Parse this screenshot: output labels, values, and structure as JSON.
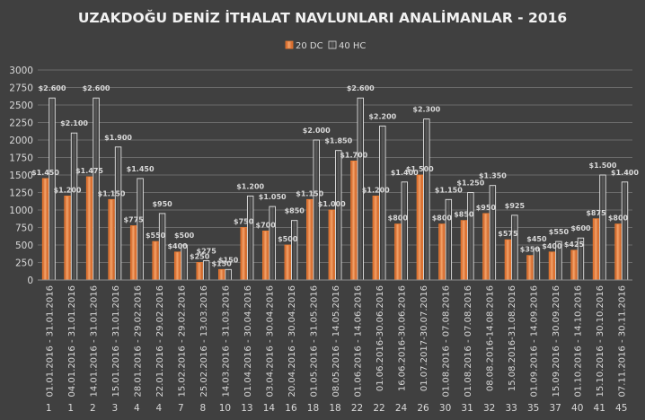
{
  "chart_data": {
    "type": "bar",
    "title": "UZAKDOĞU DENİZ İTHALAT NAVLUNLARI ANALİMANLAR - 2016",
    "legend": {
      "placement": "top-center",
      "entries": [
        "20 DC",
        "40 HC"
      ]
    },
    "ylim": [
      0,
      3000
    ],
    "yticks": [
      0,
      250,
      500,
      750,
      1000,
      1250,
      1500,
      1750,
      2000,
      2250,
      2500,
      2750,
      3000
    ],
    "grid": true,
    "categories": [
      "01.01.2016 - 31.01.2016",
      "04.01.2016 - 31.01.2016",
      "14.01.2016 - 31.01.2016",
      "15.01.2016 - 31.01.2016",
      "28.01.2016 - 29.02.2016",
      "22.01.2016 - 29.02.2016",
      "15.02.2016 - 29.02.2016",
      "25.02.2016 - 13.03.2016",
      "14.03.2016 - 31.03.2016",
      "01.04.2016 - 30.04.2016",
      "03.04.2016 - 30.04.2016",
      "20.04.2016 - 30.04.2016",
      "01.05.2016 - 31.05.2016",
      "08.05.2016 - 14.05.2016",
      "01.06.2016 - 14.06.2016",
      "01.06.2016-30.06.2016",
      "16.06.2016-30.06.2016",
      "01.07.2017-30.07.2016",
      "01.08.2016 - 07.08.2016",
      "01.08.2016 - 07.08.2016",
      "08.08.2016-14.08.2016",
      "15.08.2016-31.08.2016",
      "01.09.2016 - 14.09.2016",
      "15.09.2016 - 30.09.2016",
      "01.10.2016 - 14.10.2016",
      "15.10.2016 - 30.10.2016",
      "07.11.2016 - 30.11.2016"
    ],
    "numbers": [
      "1",
      "1",
      "2",
      "3",
      "4",
      "4",
      "7",
      "8",
      "10",
      "13",
      "14",
      "16",
      "18",
      "18",
      "22",
      "22",
      "24",
      "26",
      "30",
      "31",
      "32",
      "33",
      "35",
      "37",
      "40",
      "41",
      "45"
    ],
    "series": [
      {
        "name": "20 DC",
        "color": "#ed7d31",
        "values": [
          1450,
          1200,
          1475,
          1150,
          775,
          550,
          400,
          250,
          150,
          750,
          700,
          500,
          1150,
          1000,
          1700,
          1200,
          800,
          1500,
          800,
          850,
          950,
          575,
          350,
          400,
          425,
          875,
          800
        ],
        "labels": [
          "$1.450",
          "$1.200",
          "$1.475",
          "$1.150",
          "$775",
          "$550",
          "$400",
          "$250",
          "$150",
          "$750",
          "$700",
          "$500",
          "$1.150",
          "$1.000",
          "$1.700",
          "$1.200",
          "$800",
          "$1.500",
          "$800",
          "$850",
          "$950",
          "$575",
          "$350",
          "$400",
          "$425",
          "$875",
          "$800"
        ]
      },
      {
        "name": "40 HC",
        "color": "#404040",
        "values": [
          2600,
          2100,
          2600,
          1900,
          1450,
          950,
          500,
          275,
          150,
          1200,
          1050,
          850,
          2000,
          1850,
          2600,
          2200,
          1400,
          2300,
          1150,
          1250,
          1350,
          925,
          450,
          550,
          600,
          1500,
          1400
        ],
        "labels": [
          "$2.600",
          "$2.100",
          "$2.600",
          "$1.900",
          "$1.450",
          "$950",
          "$500",
          "$275",
          "$150",
          "$1.200",
          "$1.050",
          "$850",
          "$2.000",
          "$1.850",
          "$2.600",
          "$2.200",
          "$1.400",
          "$2.300",
          "$1.150",
          "$1.250",
          "$1.350",
          "$925",
          "$450",
          "$550",
          "$600",
          "$1.500",
          "$1.400"
        ]
      }
    ]
  }
}
